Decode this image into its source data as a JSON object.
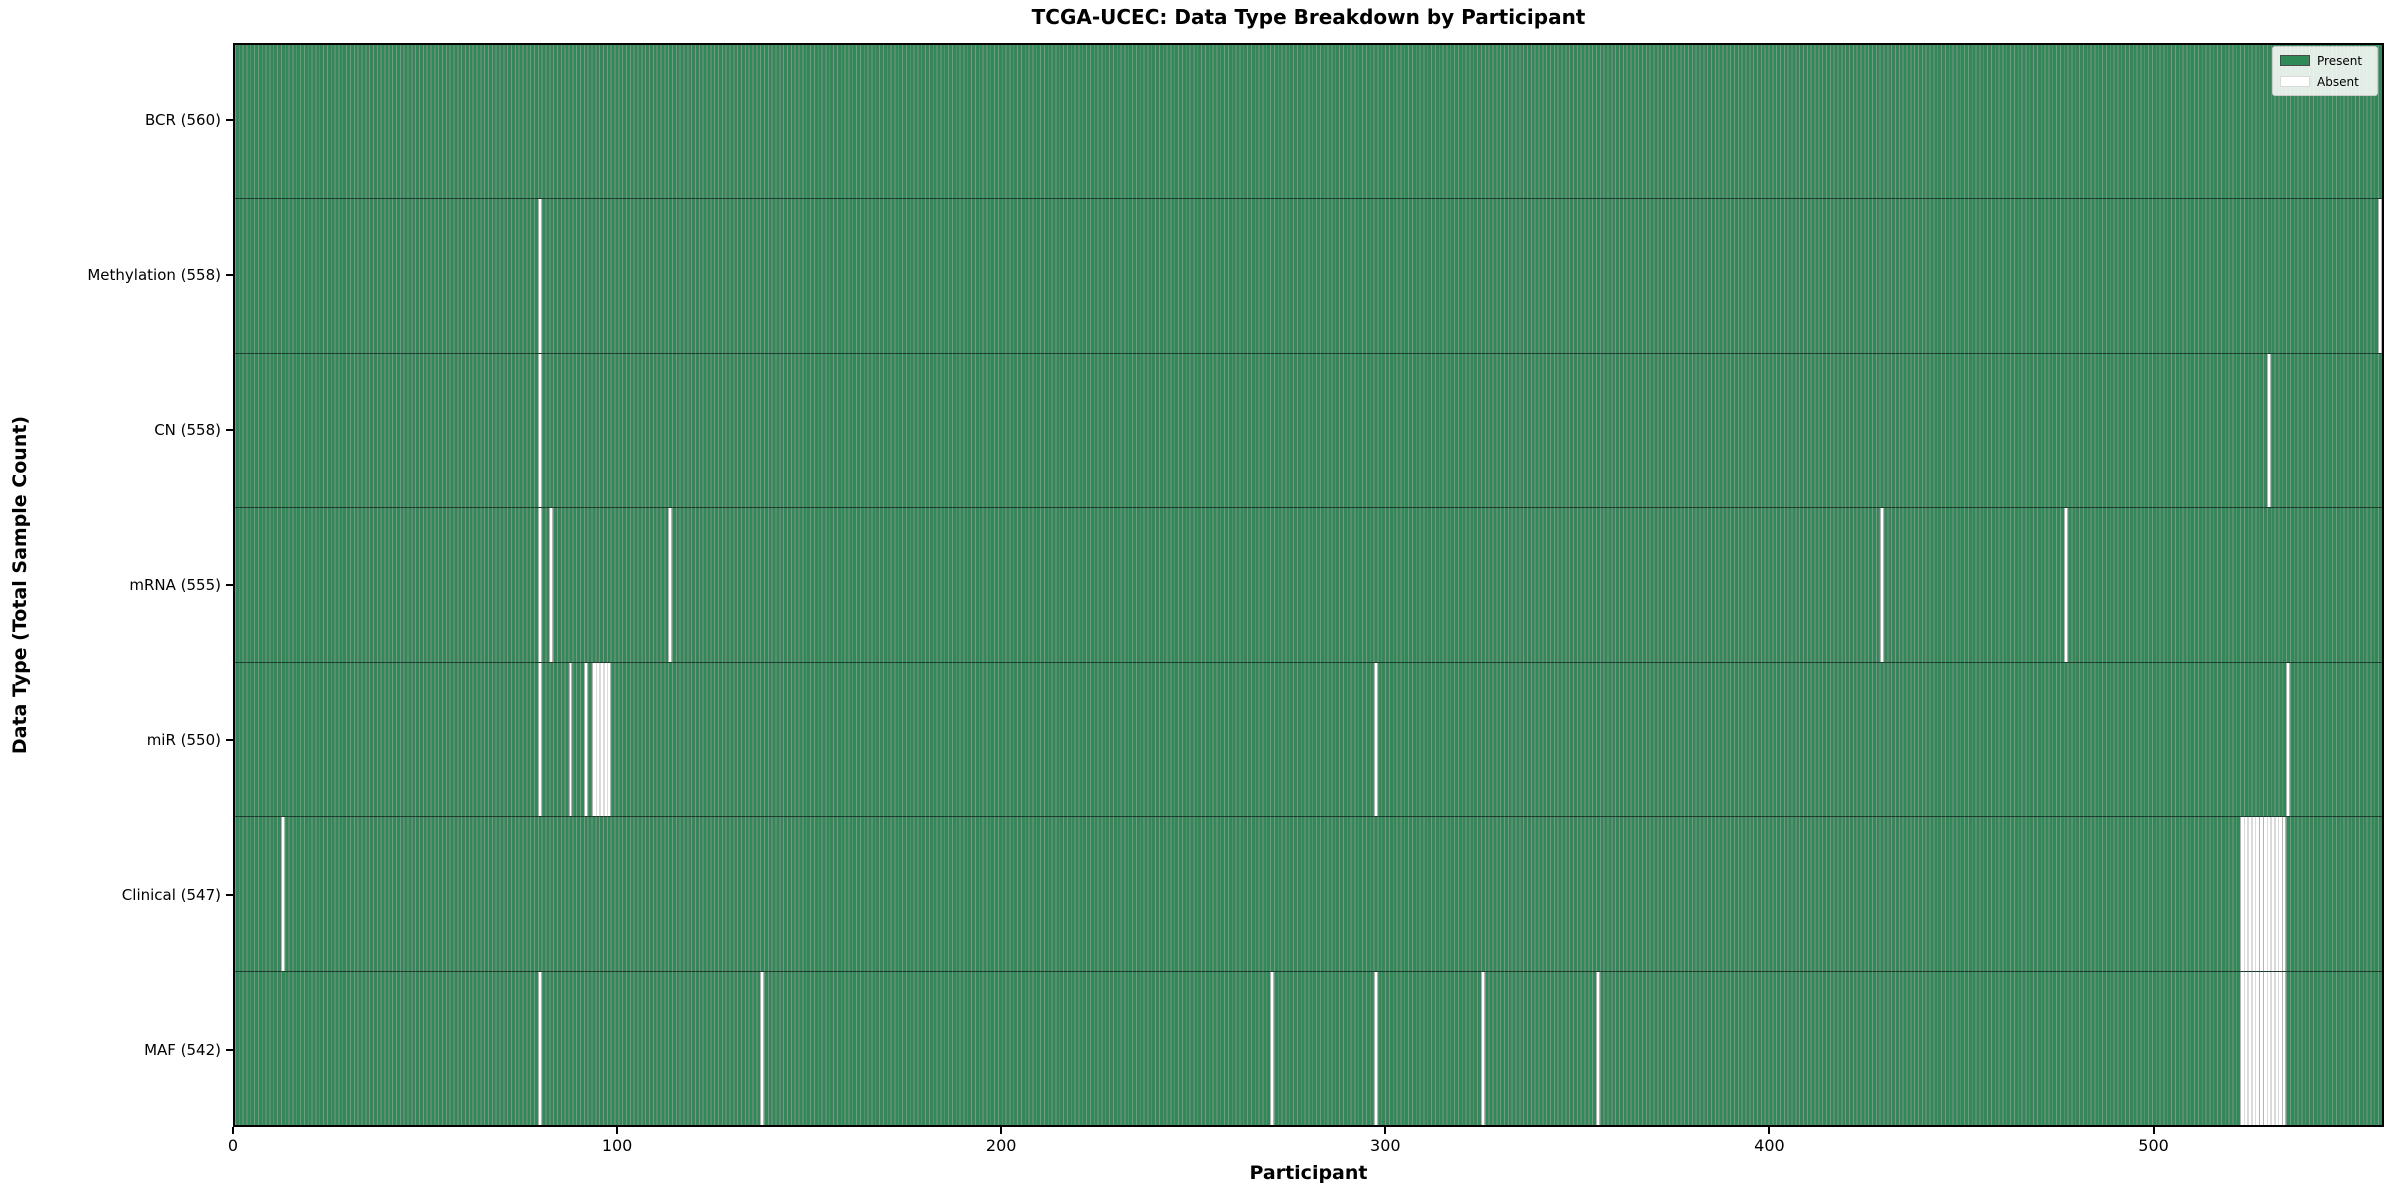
{
  "chart_data": {
    "type": "heatmap",
    "title": "TCGA-UCEC: Data Type Breakdown by Participant",
    "xlabel": "Participant",
    "ylabel": "Data Type (Total Sample Count)",
    "x_axis": {
      "min": 0,
      "max": 560,
      "ticks": [
        0,
        100,
        200,
        300,
        400,
        500
      ]
    },
    "n_participants": 560,
    "grid": false,
    "legend": {
      "position": "upper right",
      "entries": [
        {
          "label": "Present",
          "color": "#2e8b57"
        },
        {
          "label": "Absent",
          "color": "#ffffff"
        }
      ]
    },
    "rows": [
      {
        "label": "BCR (560)",
        "data_type": "BCR",
        "total_samples": 560,
        "absent_participants": []
      },
      {
        "label": "Methylation (558)",
        "data_type": "Methylation",
        "total_samples": 558,
        "absent_participants": [
          79,
          559
        ]
      },
      {
        "label": "CN (558)",
        "data_type": "CN",
        "total_samples": 558,
        "absent_participants": [
          79,
          530
        ]
      },
      {
        "label": "mRNA (555)",
        "data_type": "mRNA",
        "total_samples": 555,
        "absent_participants": [
          79,
          82,
          113,
          429,
          477
        ]
      },
      {
        "label": "miR (550)",
        "data_type": "miR",
        "total_samples": 550,
        "absent_participants": [
          79,
          87,
          91,
          93,
          94,
          95,
          96,
          97,
          297,
          535
        ]
      },
      {
        "label": "Clinical (547)",
        "data_type": "Clinical",
        "total_samples": 547,
        "absent_participants": [
          12,
          523,
          524,
          525,
          526,
          527,
          528,
          529,
          530,
          531,
          532,
          533,
          534
        ]
      },
      {
        "label": "MAF (542)",
        "data_type": "MAF",
        "total_samples": 542,
        "absent_participants": [
          79,
          137,
          270,
          297,
          325,
          355,
          523,
          524,
          525,
          526,
          527,
          528,
          529,
          530,
          531,
          532,
          533,
          534
        ]
      }
    ],
    "colors": {
      "present": "#2e8b57",
      "absent": "#ffffff",
      "bar_edge": "rgba(0,0,0,0.45)",
      "absent_edge": "#b4b4b4",
      "plot_border": "#000000",
      "legend_border": "#cccccc"
    }
  }
}
